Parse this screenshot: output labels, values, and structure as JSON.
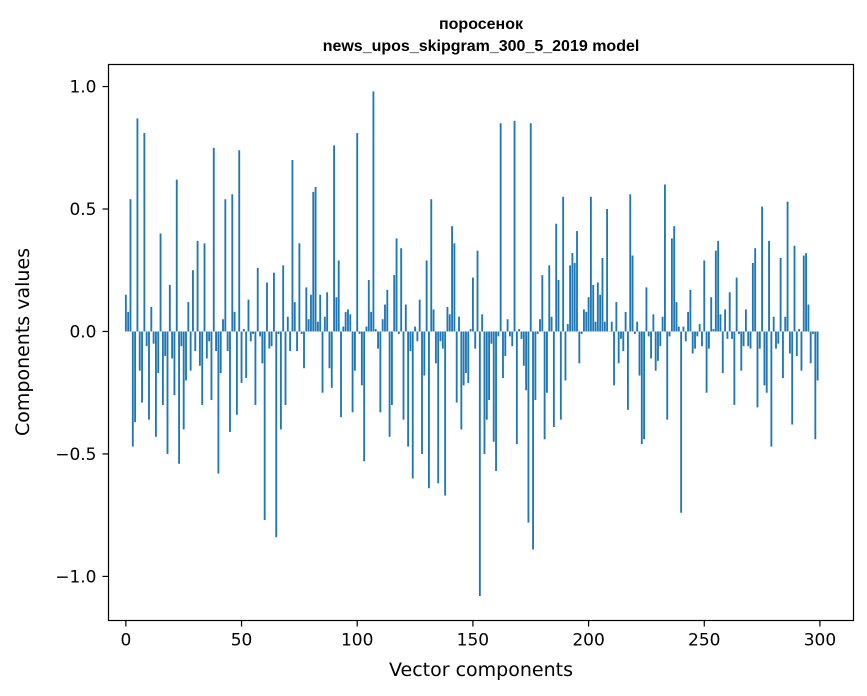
{
  "chart_data": {
    "type": "bar",
    "title": "поросенок",
    "subtitle": "news_upos_skipgram_300_5_2019 model",
    "xlabel": "Vector components",
    "ylabel": "Components values",
    "xlim": [
      -7.5,
      314.5
    ],
    "ylim": [
      -1.18,
      1.09
    ],
    "x_ticks": [
      0,
      50,
      100,
      150,
      200,
      250,
      300
    ],
    "x_tick_labels": [
      "0",
      "50",
      "100",
      "150",
      "200",
      "250",
      "300"
    ],
    "y_ticks": [
      -1.0,
      -0.5,
      0.0,
      0.5,
      1.0
    ],
    "y_tick_labels": [
      "−1.0",
      "−0.5",
      "0.0",
      "0.5",
      "1.0"
    ],
    "grid": false,
    "bar_color": "#1f77b4",
    "values": [
      0.15,
      0.08,
      0.54,
      -0.47,
      -0.37,
      0.87,
      -0.16,
      -0.29,
      0.81,
      -0.06,
      -0.36,
      0.1,
      -0.05,
      -0.43,
      -0.17,
      0.4,
      -0.3,
      -0.1,
      -0.5,
      0.19,
      -0.11,
      -0.26,
      0.62,
      -0.54,
      -0.06,
      -0.4,
      -0.2,
      0.12,
      -0.16,
      0.25,
      -0.08,
      0.37,
      -0.14,
      -0.3,
      0.36,
      -0.11,
      -0.04,
      -0.28,
      0.75,
      -0.08,
      -0.58,
      -0.17,
      0.05,
      0.54,
      -0.08,
      -0.41,
      0.56,
      0.08,
      -0.34,
      0.74,
      -0.21,
      0.01,
      -0.19,
      0.13,
      -0.04,
      -0.01,
      -0.3,
      0.26,
      -0.02,
      -0.13,
      -0.77,
      0.2,
      -0.07,
      -0.06,
      0.24,
      -0.84,
      -0.01,
      -0.4,
      0.27,
      -0.3,
      0.06,
      -0.08,
      0.7,
      0.12,
      -0.08,
      0.36,
      -0.01,
      -0.15,
      0.18,
      0.05,
      0.15,
      0.57,
      0.59,
      0.04,
      0.15,
      -0.25,
      0.06,
      0.16,
      -0.15,
      -0.23,
      0.76,
      0.14,
      0.29,
      -0.35,
      0.02,
      0.08,
      0.09,
      0.07,
      -0.33,
      -0.16,
      0.81,
      -0.01,
      -0.22,
      -0.53,
      0.02,
      0.21,
      0.08,
      0.98,
      0.01,
      -0.07,
      -0.33,
      0.05,
      0.11,
      0.17,
      -0.43,
      -0.3,
      0.23,
      0.38,
      -0.01,
      0.34,
      -0.36,
      0.11,
      -0.47,
      -0.08,
      -0.6,
      0.02,
      -0.04,
      0.13,
      -0.5,
      -0.18,
      0.29,
      -0.64,
      0.54,
      0.09,
      -0.13,
      -0.62,
      -0.04,
      -0.07,
      -0.67,
      0.1,
      0.07,
      0.43,
      0.36,
      -0.29,
      0.06,
      -0.4,
      -0.22,
      -0.17,
      -0.21,
      0.01,
      0.22,
      -0.07,
      0.33,
      -1.08,
      0.07,
      -0.5,
      -0.36,
      -0.28,
      -0.05,
      -0.45,
      -0.57,
      -0.02,
      0.85,
      -0.19,
      -0.1,
      0.05,
      -0.02,
      -0.06,
      0.86,
      -0.46,
      0.01,
      -0.03,
      -0.14,
      -0.24,
      -0.78,
      0.85,
      -0.89,
      -0.28,
      -0.01,
      0.05,
      0.23,
      -0.44,
      -0.25,
      0.27,
      0.06,
      -0.39,
      0.44,
      0.21,
      -0.36,
      0.55,
      -0.2,
      0.03,
      0.27,
      0.32,
      0.28,
      0.41,
      -0.13,
      -0.01,
      0.09,
      0.08,
      0.14,
      0.55,
      0.19,
      0.04,
      0.2,
      0.15,
      0.3,
      0.04,
      0.5,
      0.0,
      0.04,
      -0.22,
      0.12,
      -0.13,
      -0.03,
      -0.08,
      0.08,
      -0.32,
      0.56,
      0.31,
      -0.01,
      0.04,
      -0.18,
      -0.46,
      -0.44,
      0.18,
      -0.02,
      -0.11,
      0.07,
      -0.16,
      -0.12,
      -0.06,
      0.06,
      0.6,
      -0.36,
      -0.02,
      0.38,
      0.43,
      0.12,
      0.02,
      -0.74,
      0.02,
      -0.04,
      0.08,
      0.17,
      -0.09,
      -0.07,
      -0.02,
      0.03,
      -0.06,
      0.29,
      -0.25,
      -0.07,
      0.14,
      0.01,
      0.33,
      0.37,
      0.07,
      -0.17,
      0.09,
      -0.03,
      0.16,
      -0.03,
      -0.3,
      0.22,
      -0.01,
      -0.16,
      -0.06,
      0.09,
      -0.06,
      -0.07,
      0.28,
      0.34,
      -0.31,
      -0.07,
      0.51,
      -0.22,
      -0.25,
      0.37,
      -0.47,
      0.06,
      -0.07,
      -0.05,
      0.3,
      -0.19,
      0.06,
      0.53,
      -0.09,
      -0.38,
      0.35,
      -0.1,
      0.01,
      -0.16,
      0.31,
      0.32,
      0.11,
      -0.13,
      -0.01,
      -0.44,
      -0.2
    ]
  }
}
